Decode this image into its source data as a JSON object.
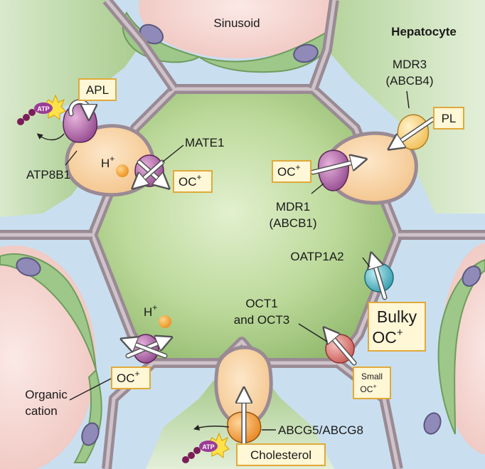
{
  "labels": {
    "sinusoid": "Sinusoid",
    "hepatocyte": "Hepatocyte",
    "mdr3": [
      "MDR3",
      "(ABCB4)"
    ],
    "pl": "PL",
    "apl": "APL",
    "atp": "ATP",
    "atp8b1": "ATP8B1",
    "mate1": "MATE1",
    "h_plus": "H",
    "plus": "+",
    "oc": "OC",
    "mdr1": [
      "MDR1",
      "(ABCB1)"
    ],
    "oatp1a2": "OATP1A2",
    "oct": [
      "OCT1",
      "and OCT3"
    ],
    "bulky": [
      "Bulky",
      "OC"
    ],
    "small": [
      "Small",
      "OC"
    ],
    "organic": [
      "Organic",
      "cation"
    ],
    "abcg": "ABCG5/ABCG8",
    "cholesterol": "Cholesterol"
  },
  "colors": {
    "blood": "#c9dff0",
    "hepatocyte_center": "#c6e0a4",
    "hepatocyte_edge": "#8fb96a",
    "neighbor_cell": "#c5ddb4",
    "membrane": "#9a8a94",
    "canaliculus": "#f7d4a4",
    "sinusoid_lumen": "#f5d8d4",
    "endothelium": "#9ec78a",
    "nucleus": "#8f8ab8",
    "transporter_purple": "#a0509a",
    "transporter_yellow": "#f7cf72",
    "transporter_teal": "#3aa8b8",
    "transporter_red": "#d96a66",
    "transporter_orange": "#f39a32",
    "ion_orange": "#f29a1d",
    "label_box_fill": "#fff7d6",
    "label_box_stroke": "#e0a93a"
  },
  "icons": [
    "atp-molecule-icon",
    "h-plus-ion-icon",
    "transport-arrow-icon",
    "nucleus-icon"
  ]
}
